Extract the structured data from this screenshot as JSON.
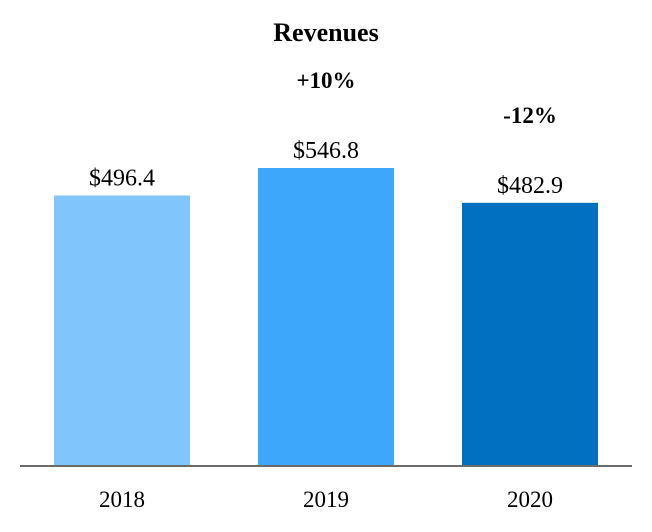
{
  "chart_data": {
    "type": "bar",
    "title": "Revenues",
    "categories": [
      "2018",
      "2019",
      "2020"
    ],
    "values": [
      496.4,
      546.8,
      482.9
    ],
    "value_labels": [
      "$496.4",
      "$546.8",
      "$482.9"
    ],
    "annotations": [
      {
        "category": "2019",
        "text": "+10%"
      },
      {
        "category": "2020",
        "text": "-12%"
      }
    ],
    "colors": [
      "#80c6fd",
      "#3da8fb",
      "#0270c1"
    ],
    "axis_color": "#6b6b6b",
    "ylim": [
      0,
      546.8
    ],
    "grid": false,
    "legend": "none"
  }
}
